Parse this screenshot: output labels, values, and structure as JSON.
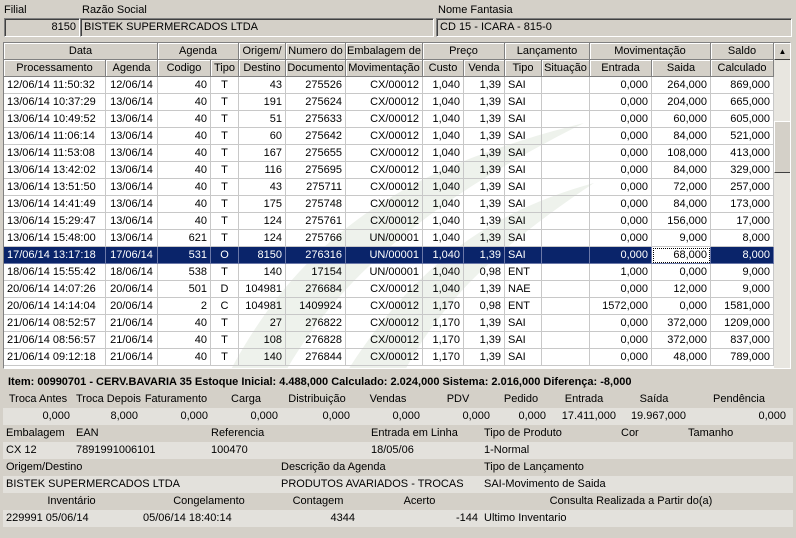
{
  "header": {
    "filial_label": "Filial",
    "filial_value": "8150",
    "razao_label": "Razão Social",
    "razao_value": "BISTEK SUPERMERCADOS LTDA",
    "fantasia_label": "Nome Fantasia",
    "fantasia_value": "CD 15 - ICARA - 815-0"
  },
  "grid": {
    "groups": [
      "Data",
      "Agenda",
      "Origem/",
      "Numero do",
      "Embalagem de",
      "Preço",
      "Lançamento",
      "Movimentação",
      "Saldo"
    ],
    "columns": [
      "Processamento",
      "Agenda",
      "Codigo",
      "Tipo",
      "Destino",
      "Documento",
      "Movimentação",
      "Custo",
      "Venda",
      "Tipo",
      "Situação",
      "Entrada",
      "Saida",
      "Calculado"
    ],
    "rows": [
      [
        "12/06/14 11:50:32",
        "12/06/14",
        "40",
        "T",
        "43",
        "275526",
        "CX/00012",
        "1,040",
        "1,39",
        "SAI",
        "",
        "0,000",
        "264,000",
        "869,000"
      ],
      [
        "13/06/14 10:37:29",
        "13/06/14",
        "40",
        "T",
        "191",
        "275624",
        "CX/00012",
        "1,040",
        "1,39",
        "SAI",
        "",
        "0,000",
        "204,000",
        "665,000"
      ],
      [
        "13/06/14 10:49:52",
        "13/06/14",
        "40",
        "T",
        "51",
        "275633",
        "CX/00012",
        "1,040",
        "1,39",
        "SAI",
        "",
        "0,000",
        "60,000",
        "605,000"
      ],
      [
        "13/06/14 11:06:14",
        "13/06/14",
        "40",
        "T",
        "60",
        "275642",
        "CX/00012",
        "1,040",
        "1,39",
        "SAI",
        "",
        "0,000",
        "84,000",
        "521,000"
      ],
      [
        "13/06/14 11:53:08",
        "13/06/14",
        "40",
        "T",
        "167",
        "275655",
        "CX/00012",
        "1,040",
        "1,39",
        "SAI",
        "",
        "0,000",
        "108,000",
        "413,000"
      ],
      [
        "13/06/14 13:42:02",
        "13/06/14",
        "40",
        "T",
        "116",
        "275695",
        "CX/00012",
        "1,040",
        "1,39",
        "SAI",
        "",
        "0,000",
        "84,000",
        "329,000"
      ],
      [
        "13/06/14 13:51:50",
        "13/06/14",
        "40",
        "T",
        "43",
        "275711",
        "CX/00012",
        "1,040",
        "1,39",
        "SAI",
        "",
        "0,000",
        "72,000",
        "257,000"
      ],
      [
        "13/06/14 14:41:49",
        "13/06/14",
        "40",
        "T",
        "175",
        "275748",
        "CX/00012",
        "1,040",
        "1,39",
        "SAI",
        "",
        "0,000",
        "84,000",
        "173,000"
      ],
      [
        "13/06/14 15:29:47",
        "13/06/14",
        "40",
        "T",
        "124",
        "275761",
        "CX/00012",
        "1,040",
        "1,39",
        "SAI",
        "",
        "0,000",
        "156,000",
        "17,000"
      ],
      [
        "13/06/14 15:48:00",
        "13/06/14",
        "621",
        "T",
        "124",
        "275766",
        "UN/00001",
        "1,040",
        "1,39",
        "SAI",
        "",
        "0,000",
        "9,000",
        "8,000"
      ],
      [
        "17/06/14 13:17:18",
        "17/06/14",
        "531",
        "O",
        "8150",
        "276316",
        "UN/00001",
        "1,040",
        "1,39",
        "SAI",
        "",
        "0,000",
        "68,000",
        "8,000"
      ],
      [
        "18/06/14 15:55:42",
        "18/06/14",
        "538",
        "T",
        "140",
        "17154",
        "UN/00001",
        "1,040",
        "0,98",
        "ENT",
        "",
        "1,000",
        "0,000",
        "9,000"
      ],
      [
        "20/06/14 14:07:26",
        "20/06/14",
        "501",
        "D",
        "104981",
        "276684",
        "CX/00012",
        "1,040",
        "1,39",
        "NAE",
        "",
        "0,000",
        "12,000",
        "9,000"
      ],
      [
        "20/06/14 14:14:04",
        "20/06/14",
        "2",
        "C",
        "104981",
        "1409924",
        "CX/00012",
        "1,170",
        "0,98",
        "ENT",
        "",
        "1572,000",
        "0,000",
        "1581,000"
      ],
      [
        "21/06/14 08:52:57",
        "21/06/14",
        "40",
        "T",
        "27",
        "276822",
        "CX/00012",
        "1,170",
        "1,39",
        "SAI",
        "",
        "0,000",
        "372,000",
        "1209,000"
      ],
      [
        "21/06/14 08:56:57",
        "21/06/14",
        "40",
        "T",
        "108",
        "276828",
        "CX/00012",
        "1,170",
        "1,39",
        "SAI",
        "",
        "0,000",
        "372,000",
        "837,000"
      ],
      [
        "21/06/14 09:12:18",
        "21/06/14",
        "40",
        "T",
        "140",
        "276844",
        "CX/00012",
        "1,170",
        "1,39",
        "SAI",
        "",
        "0,000",
        "48,000",
        "789,000"
      ]
    ]
  },
  "summary": {
    "item_line": "Item: 00990701 - CERV.BAVARIA 35  Estoque Inicial: 4.488,000  Calculado: 2.024,000  Sistema: 2.016,000  Diferença: -8,000",
    "labels1": [
      "Troca Antes",
      "Troca Depois",
      "Faturamento",
      "Carga",
      "Distribuição",
      "Vendas",
      "PDV",
      "Pedido",
      "Entrada",
      "Saída",
      "Pendência"
    ],
    "values1": [
      "0,000",
      "8,000",
      "0,000",
      "0,000",
      "0,000",
      "0,000",
      "0,000",
      "0,000",
      "17.411,000",
      "19.967,000",
      "0,000"
    ],
    "labels2": [
      "Embalagem",
      "EAN",
      "Referencia",
      "Entrada em Linha",
      "Tipo de Produto",
      "Cor",
      "Tamanho"
    ],
    "values2": [
      "CX   12",
      "7891991006101",
      "100470",
      "18/05/06",
      "1-Normal",
      "",
      ""
    ],
    "labels3": [
      "Origem/Destino",
      "Descrição da Agenda",
      "Tipo de Lançamento"
    ],
    "values3": [
      "BISTEK SUPERMERCADOS LTDA",
      "PRODUTOS AVARIADOS - TROCAS",
      "SAI-Movimento de Saida"
    ],
    "labels4": [
      "Inventário",
      "Congelamento",
      "Contagem",
      "Acerto",
      "Consulta Realizada a Partir do(a)"
    ],
    "values4": [
      "229991 05/06/14",
      "05/06/14 18:40:14",
      "4344",
      "-144",
      "Ultimo Inventario"
    ]
  },
  "selected_row": 10,
  "colors": {
    "selection": "#0a246a",
    "window": "#d4d0c8"
  }
}
